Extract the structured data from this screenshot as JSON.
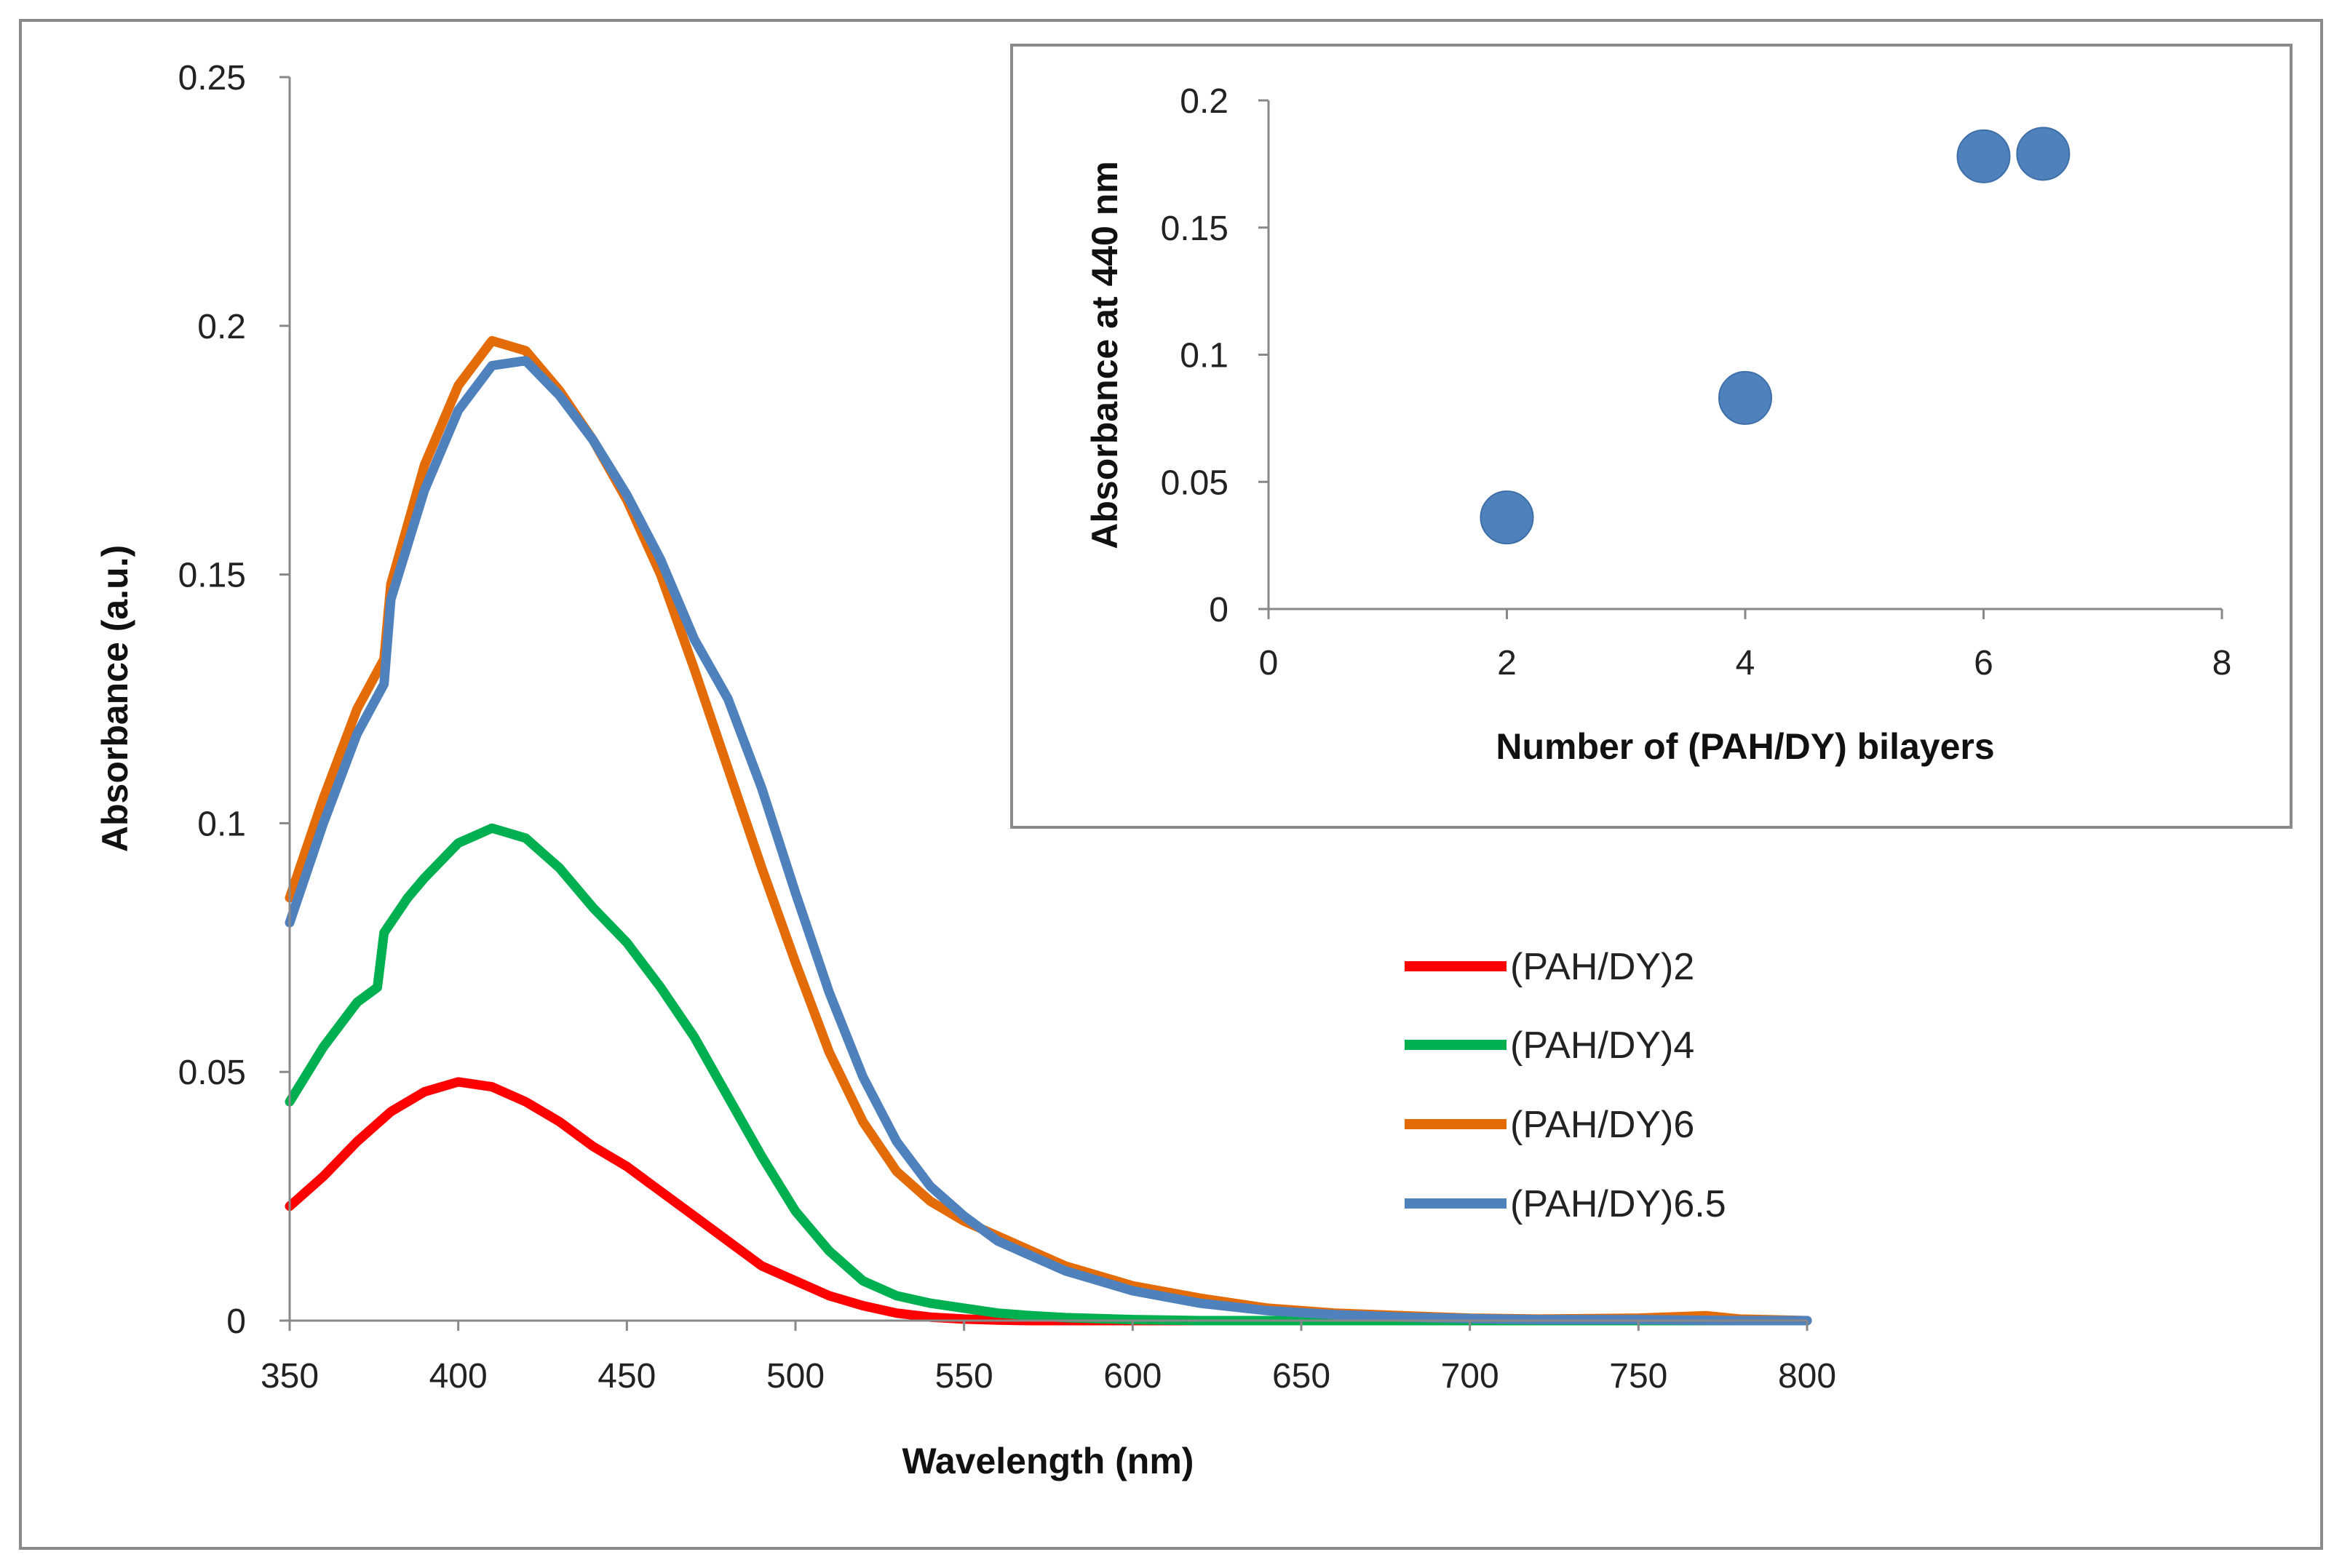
{
  "chart_data": [
    {
      "type": "line",
      "title": "",
      "xlabel": "Wavelength (nm)",
      "ylabel": "Absorbance (a.u.)",
      "xlim": [
        350,
        800
      ],
      "ylim": [
        0,
        0.25
      ],
      "x_ticks": [
        350,
        400,
        450,
        500,
        550,
        600,
        650,
        700,
        750,
        800
      ],
      "x_tick_labels": [
        "350",
        "400",
        "450",
        "500",
        "550",
        "600",
        "650",
        "700",
        "750",
        "800"
      ],
      "y_ticks": [
        0,
        0.05,
        0.1,
        0.15,
        0.2,
        0.25
      ],
      "y_tick_labels": [
        "0",
        "0.05",
        "0.1",
        "0.15",
        "0.2",
        "0.25"
      ],
      "grid": false,
      "legend_position": "right",
      "series": [
        {
          "name": "(PAH/DY)2",
          "color": "#ff0000",
          "points": [
            [
              350,
              0.023
            ],
            [
              360,
              0.029
            ],
            [
              370,
              0.036
            ],
            [
              380,
              0.042
            ],
            [
              390,
              0.046
            ],
            [
              400,
              0.048
            ],
            [
              410,
              0.047
            ],
            [
              420,
              0.044
            ],
            [
              430,
              0.04
            ],
            [
              440,
              0.035
            ],
            [
              450,
              0.031
            ],
            [
              460,
              0.026
            ],
            [
              470,
              0.021
            ],
            [
              480,
              0.016
            ],
            [
              490,
              0.011
            ],
            [
              500,
              0.008
            ],
            [
              510,
              0.005
            ],
            [
              520,
              0.003
            ],
            [
              530,
              0.0015
            ],
            [
              540,
              0.0007
            ],
            [
              550,
              0.0003
            ],
            [
              560,
              0.0001
            ],
            [
              570,
              0
            ],
            [
              600,
              0
            ],
            [
              650,
              0
            ],
            [
              700,
              0
            ],
            [
              750,
              0
            ],
            [
              800,
              0
            ]
          ]
        },
        {
          "name": "(PAH/DY)4",
          "color": "#00b050",
          "points": [
            [
              350,
              0.044
            ],
            [
              360,
              0.055
            ],
            [
              370,
              0.064
            ],
            [
              376,
              0.067
            ],
            [
              378,
              0.078
            ],
            [
              385,
              0.085
            ],
            [
              390,
              0.089
            ],
            [
              400,
              0.096
            ],
            [
              410,
              0.099
            ],
            [
              420,
              0.097
            ],
            [
              430,
              0.091
            ],
            [
              440,
              0.083
            ],
            [
              450,
              0.076
            ],
            [
              460,
              0.067
            ],
            [
              470,
              0.057
            ],
            [
              480,
              0.045
            ],
            [
              490,
              0.033
            ],
            [
              500,
              0.022
            ],
            [
              510,
              0.014
            ],
            [
              520,
              0.008
            ],
            [
              530,
              0.005
            ],
            [
              540,
              0.0035
            ],
            [
              550,
              0.0025
            ],
            [
              560,
              0.0015
            ],
            [
              570,
              0.001
            ],
            [
              580,
              0.0006
            ],
            [
              600,
              0.0002
            ],
            [
              620,
              0
            ],
            [
              650,
              0
            ],
            [
              700,
              0
            ],
            [
              750,
              0
            ],
            [
              800,
              0
            ]
          ]
        },
        {
          "name": "(PAH/DY)6",
          "color": "#e36c09",
          "points": [
            [
              350,
              0.085
            ],
            [
              360,
              0.105
            ],
            [
              370,
              0.123
            ],
            [
              378,
              0.133
            ],
            [
              380,
              0.148
            ],
            [
              390,
              0.172
            ],
            [
              400,
              0.188
            ],
            [
              410,
              0.197
            ],
            [
              420,
              0.195
            ],
            [
              430,
              0.187
            ],
            [
              440,
              0.177
            ],
            [
              450,
              0.165
            ],
            [
              460,
              0.15
            ],
            [
              470,
              0.131
            ],
            [
              480,
              0.111
            ],
            [
              490,
              0.091
            ],
            [
              500,
              0.072
            ],
            [
              510,
              0.054
            ],
            [
              520,
              0.04
            ],
            [
              530,
              0.03
            ],
            [
              540,
              0.024
            ],
            [
              550,
              0.02
            ],
            [
              560,
              0.017
            ],
            [
              570,
              0.014
            ],
            [
              580,
              0.011
            ],
            [
              590,
              0.009
            ],
            [
              600,
              0.007
            ],
            [
              620,
              0.0045
            ],
            [
              640,
              0.0025
            ],
            [
              660,
              0.0015
            ],
            [
              680,
              0.001
            ],
            [
              700,
              0.0005
            ],
            [
              720,
              0.0003
            ],
            [
              750,
              0.0005
            ],
            [
              770,
              0.001
            ],
            [
              780,
              0.0003
            ],
            [
              800,
              0
            ]
          ]
        },
        {
          "name": "(PAH/DY)6.5",
          "color": "#4f81bd",
          "points": [
            [
              350,
              0.08
            ],
            [
              360,
              0.1
            ],
            [
              370,
              0.118
            ],
            [
              378,
              0.128
            ],
            [
              380,
              0.145
            ],
            [
              390,
              0.167
            ],
            [
              400,
              0.183
            ],
            [
              410,
              0.192
            ],
            [
              420,
              0.193
            ],
            [
              430,
              0.186
            ],
            [
              440,
              0.177
            ],
            [
              450,
              0.166
            ],
            [
              460,
              0.153
            ],
            [
              470,
              0.137
            ],
            [
              480,
              0.125
            ],
            [
              490,
              0.107
            ],
            [
              500,
              0.086
            ],
            [
              510,
              0.066
            ],
            [
              520,
              0.049
            ],
            [
              530,
              0.036
            ],
            [
              540,
              0.027
            ],
            [
              550,
              0.021
            ],
            [
              560,
              0.016
            ],
            [
              570,
              0.013
            ],
            [
              580,
              0.01
            ],
            [
              590,
              0.008
            ],
            [
              600,
              0.006
            ],
            [
              620,
              0.0035
            ],
            [
              640,
              0.002
            ],
            [
              660,
              0.0012
            ],
            [
              680,
              0.0007
            ],
            [
              700,
              0.0004
            ],
            [
              720,
              0.0002
            ],
            [
              750,
              0.0002
            ],
            [
              780,
              0
            ],
            [
              800,
              0
            ]
          ]
        }
      ]
    },
    {
      "type": "scatter",
      "title": "",
      "xlabel": "Number of (PAH/DY) bilayers",
      "ylabel": "Absorbance at 440 nm",
      "xlim": [
        0,
        8
      ],
      "ylim": [
        0,
        0.2
      ],
      "x_ticks": [
        0,
        2,
        4,
        6,
        8
      ],
      "x_tick_labels": [
        "0",
        "2",
        "4",
        "6",
        "8"
      ],
      "y_ticks": [
        0,
        0.05,
        0.1,
        0.15,
        0.2
      ],
      "y_tick_labels": [
        "0",
        "0.05",
        "0.1",
        "0.15",
        "0.2"
      ],
      "grid": false,
      "series": [
        {
          "name": "Absorbance at 440 nm",
          "color": "#4f81bd",
          "x": [
            2,
            4,
            6,
            6.5
          ],
          "y": [
            0.036,
            0.083,
            0.178,
            0.179
          ]
        }
      ]
    }
  ]
}
